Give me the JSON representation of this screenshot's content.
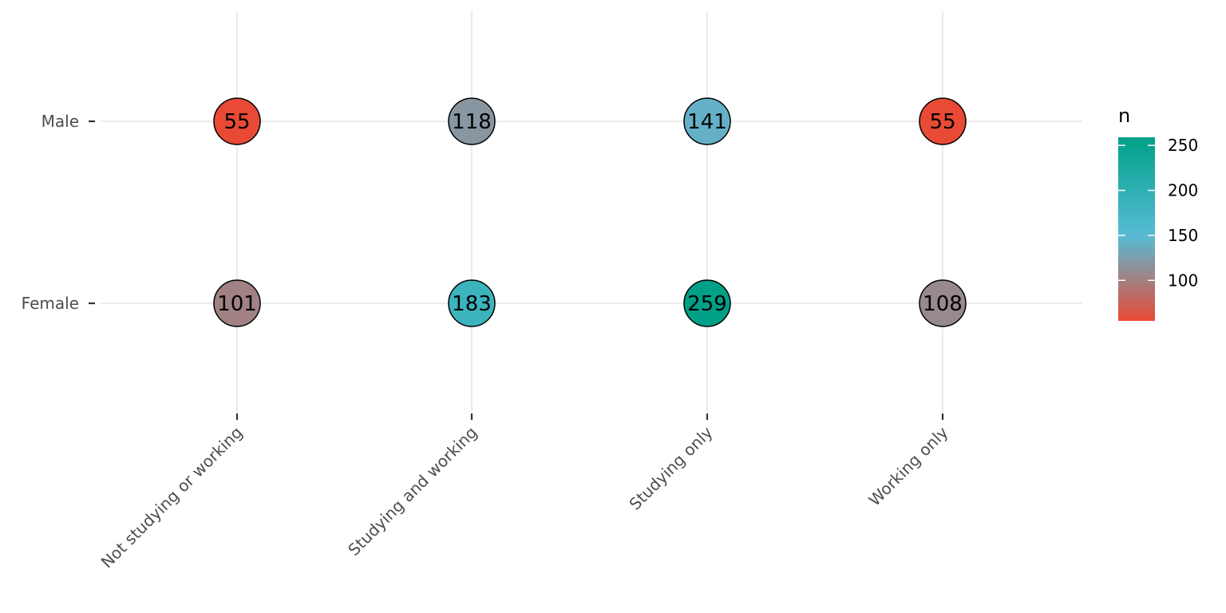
{
  "chart_data": {
    "type": "scatter",
    "x_categories": [
      "Not studying or working",
      "Studying and working",
      "Studying only",
      "Working only"
    ],
    "y_categories": [
      "Male",
      "Female"
    ],
    "points": [
      {
        "x": "Not studying or working",
        "y": "Male",
        "n": 55
      },
      {
        "x": "Studying and working",
        "y": "Male",
        "n": 118
      },
      {
        "x": "Studying only",
        "y": "Male",
        "n": 141
      },
      {
        "x": "Working only",
        "y": "Male",
        "n": 55
      },
      {
        "x": "Not studying or working",
        "y": "Female",
        "n": 101
      },
      {
        "x": "Studying and working",
        "y": "Female",
        "n": 183
      },
      {
        "x": "Studying only",
        "y": "Female",
        "n": 259
      },
      {
        "x": "Working only",
        "y": "Female",
        "n": 108
      }
    ],
    "legend": {
      "title": "n",
      "ticks": [
        100,
        150,
        200,
        250
      ],
      "range": [
        55,
        259
      ],
      "position": "right"
    },
    "color_scale": [
      {
        "value": 55,
        "color": "#e84a35"
      },
      {
        "value": 150,
        "color": "#56bcd6"
      },
      {
        "value": 259,
        "color": "#00a087"
      }
    ],
    "grid": true,
    "title": "",
    "xlabel": "",
    "ylabel": ""
  }
}
